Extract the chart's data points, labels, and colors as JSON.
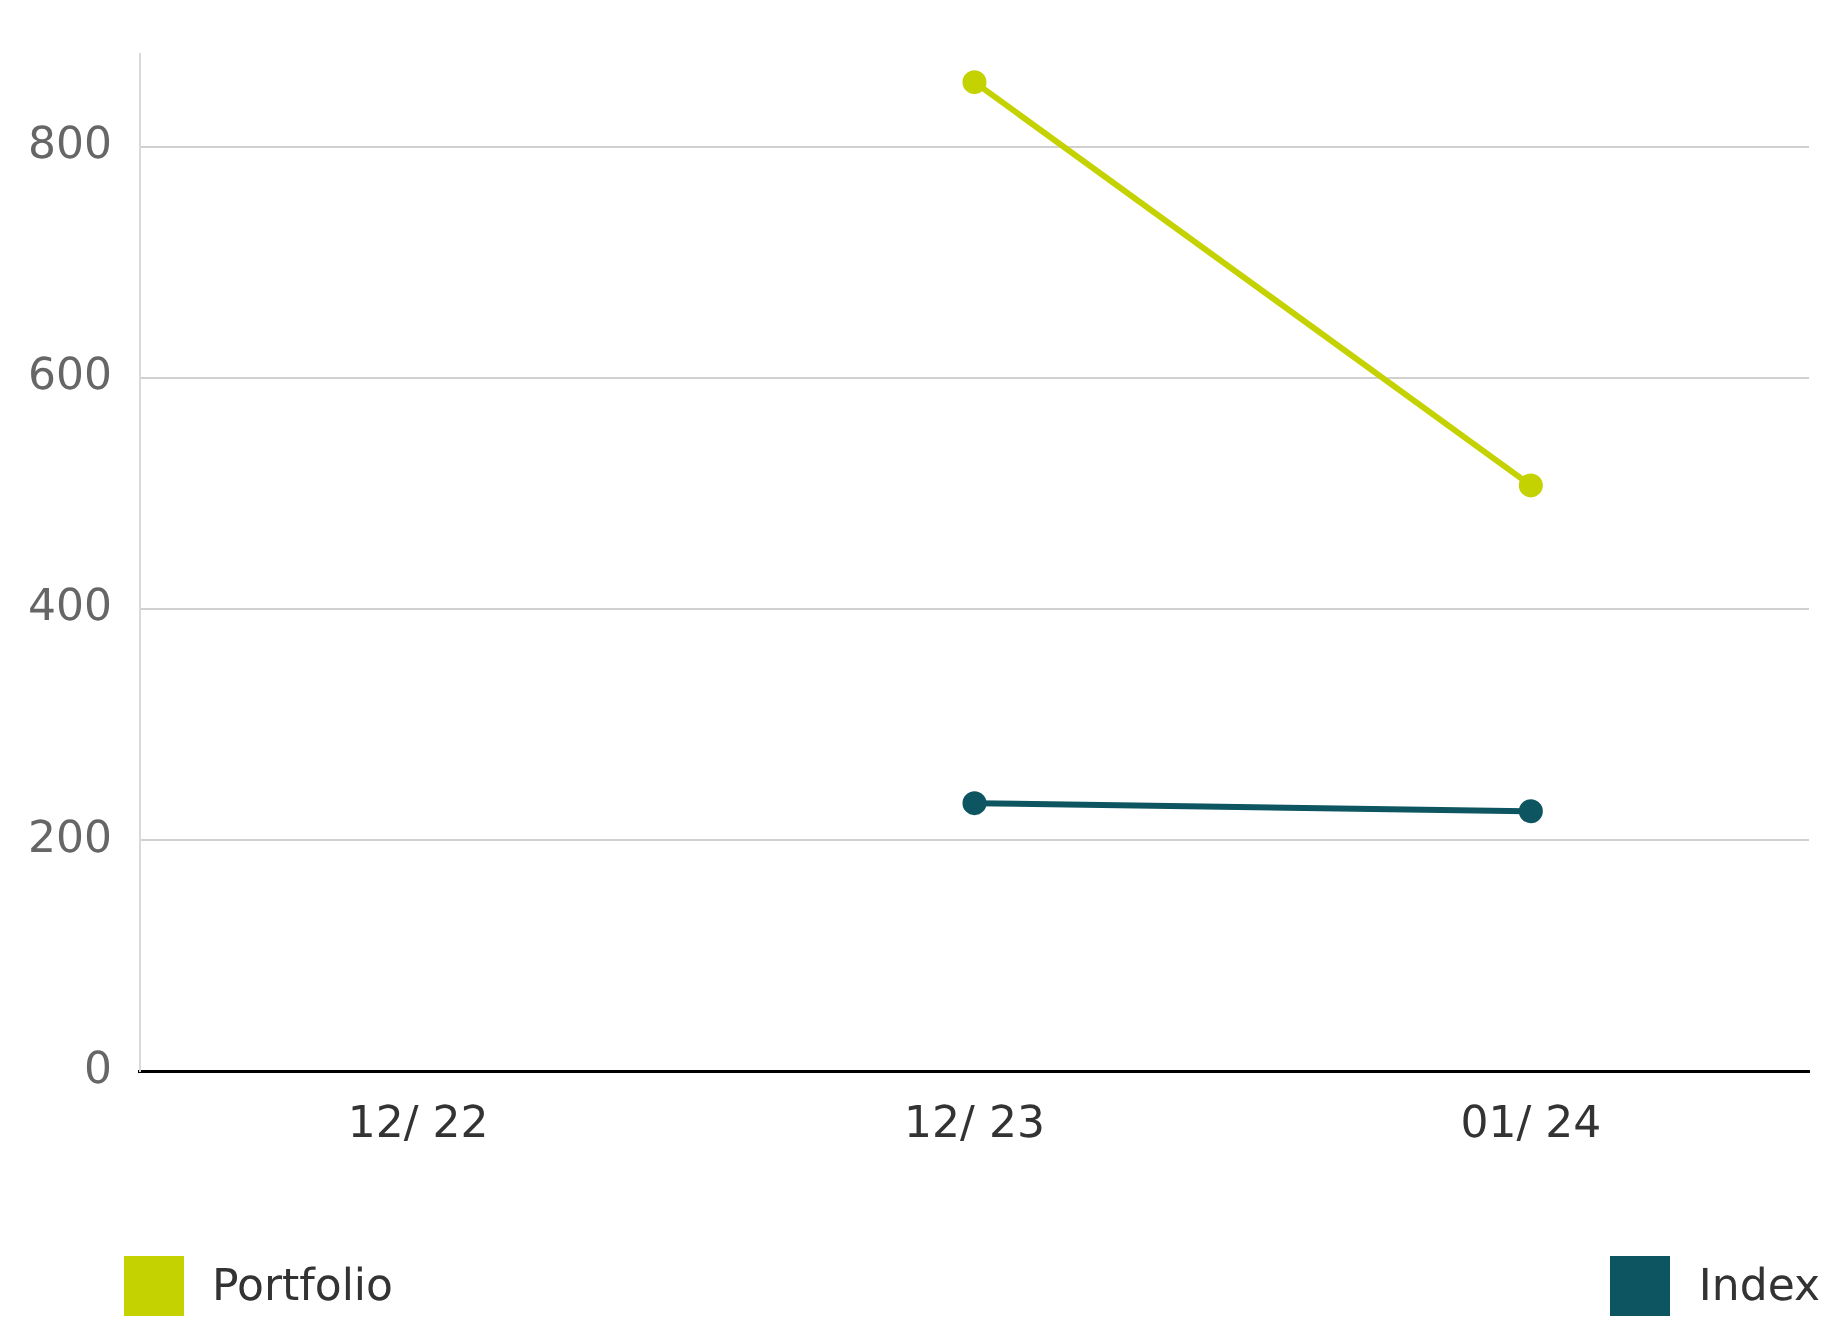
{
  "chart_data": {
    "type": "line",
    "categories": [
      "12/ 22",
      "12/ 23",
      "01/ 24"
    ],
    "series": [
      {
        "name": "Portfolio",
        "color": "#c3d200",
        "values": [
          null,
          856,
          507
        ]
      },
      {
        "name": "Index",
        "color": "#0d5560",
        "values": [
          null,
          232,
          225
        ]
      }
    ],
    "ylim": [
      0,
      880
    ],
    "yticks": [
      0,
      200,
      400,
      600,
      800
    ],
    "grid": "y",
    "legend": "bottom",
    "marker": "circle",
    "line_style": "solid"
  }
}
